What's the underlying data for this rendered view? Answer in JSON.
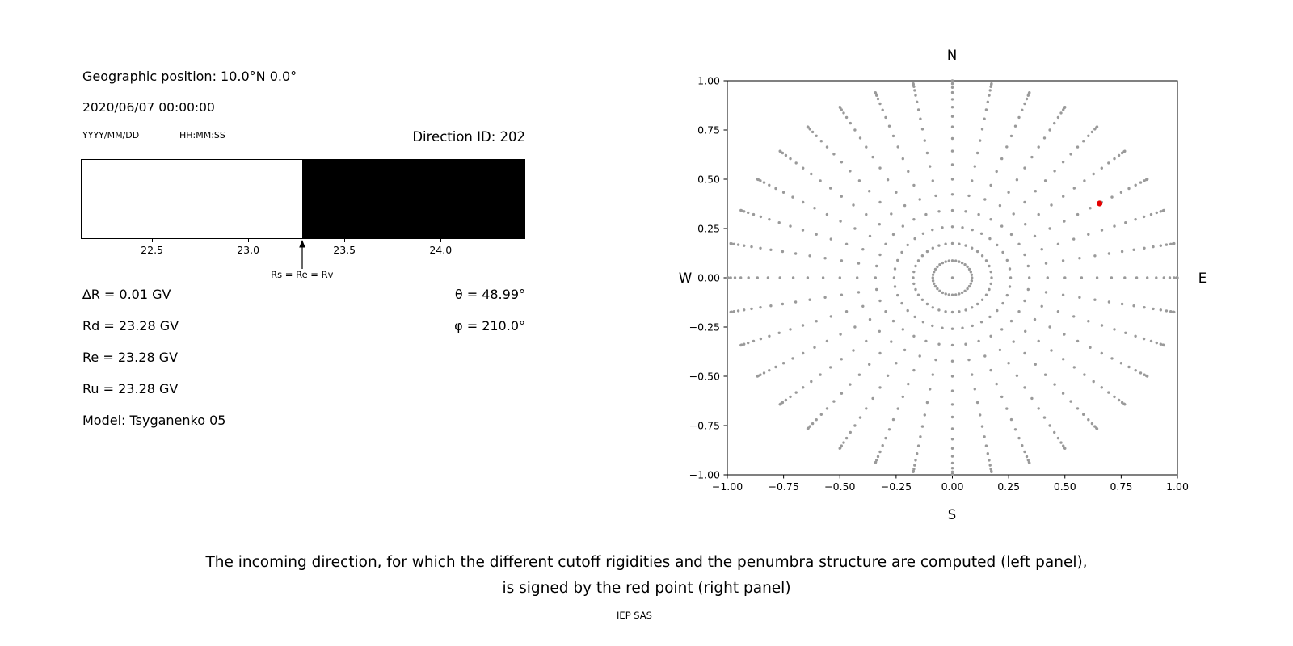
{
  "left_panel": {
    "geo_position": "Geographic position: 10.0°N 0.0°",
    "datetime": "2020/06/07 00:00:00",
    "date_format": "YYYY/MM/DD",
    "time_format": "HH:MM:SS",
    "direction_id": "Direction ID: 202",
    "rigidity_lines": [
      "∆R = 0.01 GV",
      "Rd = 23.28 GV",
      "Re = 23.28 GV",
      "Ru = 23.28 GV",
      "Model: Tsyganenko 05"
    ],
    "angle_lines": [
      "θ = 48.99°",
      "φ = 210.0°"
    ]
  },
  "caption": {
    "line1": "The incoming direction, for which the different cutoff rigidities and the penumbra structure are computed (left panel),",
    "line2": "is signed by the red point (right panel)",
    "credit": "IEP SAS"
  },
  "chart_data": [
    {
      "type": "area",
      "description": "penumbra structure: white = allowed rigidities, black = forbidden",
      "xlim": [
        22.13,
        24.44
      ],
      "xticks": [
        22.5,
        23.0,
        23.5,
        24.0
      ],
      "xtick_labels": [
        "22.5",
        "23.0",
        "23.5",
        "24.0"
      ],
      "allowed_region": [
        22.13,
        23.28
      ],
      "forbidden_region": [
        23.28,
        24.44
      ],
      "allowed_color": "#ffffff",
      "forbidden_color": "#000000",
      "annotation": {
        "label": "Rs = Re = Rv",
        "x": 23.28
      }
    },
    {
      "type": "scatter",
      "xlim": [
        -1.0,
        1.0
      ],
      "ylim": [
        -1.0,
        1.0
      ],
      "xticks": [
        -1.0,
        -0.75,
        -0.5,
        -0.25,
        0.0,
        0.25,
        0.5,
        0.75,
        1.0
      ],
      "yticks": [
        -1.0,
        -0.75,
        -0.5,
        -0.25,
        0.0,
        0.25,
        0.5,
        0.75,
        1.0
      ],
      "xtick_labels": [
        "−1.00",
        "−0.75",
        "−0.50",
        "−0.25",
        "0.00",
        "0.25",
        "0.50",
        "0.75",
        "1.00"
      ],
      "ytick_labels": [
        "−1.00",
        "−0.75",
        "−0.50",
        "−0.25",
        "0.00",
        "0.25",
        "0.50",
        "0.75",
        "1.00"
      ],
      "grid": false,
      "labels": {
        "top": "N",
        "bottom": "S",
        "left": "W",
        "right": "E"
      },
      "grid_series": {
        "name": "direction grid (radius = sin(zenith), rays every 10° azimuth)",
        "color": "#9a9a9a",
        "marker_radius_px": 1.7,
        "azimuths_deg": [
          0,
          10,
          20,
          30,
          40,
          50,
          60,
          70,
          80,
          90,
          100,
          110,
          120,
          130,
          140,
          150,
          160,
          170,
          180,
          190,
          200,
          210,
          220,
          230,
          240,
          250,
          260,
          270,
          280,
          290,
          300,
          310,
          320,
          330,
          340,
          350
        ],
        "ring_radii": [
          0.087,
          0.174,
          0.259,
          0.342,
          0.423,
          0.5,
          0.574,
          0.643,
          0.707,
          0.766,
          0.819,
          0.866,
          0.906,
          0.94,
          0.966,
          0.985,
          0.996,
          1.0
        ],
        "center_point": [
          0.0,
          0.0
        ]
      },
      "selected_point": {
        "name": "incoming direction (red point)",
        "color": "#e50000",
        "x": 0.654,
        "y": 0.377,
        "marker_radius_px": 3.6
      }
    }
  ]
}
